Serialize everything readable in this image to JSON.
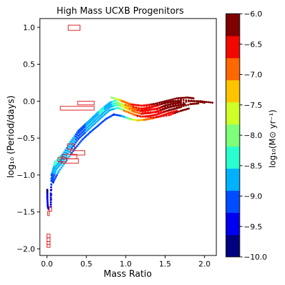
{
  "chart_data": {
    "type": "scatter",
    "title": "High Mass UCXB Progenitors",
    "xlabel": "Mass Ratio",
    "ylabel": "log₁₀ (Period/days)",
    "xlim": [
      -0.09,
      2.15
    ],
    "ylim": [
      -2.09,
      1.12
    ],
    "xticks": [
      0.0,
      0.5,
      1.0,
      1.5,
      2.0
    ],
    "xtick_labels": [
      "0.0",
      "0.5",
      "1.0",
      "1.5",
      "2.0"
    ],
    "yticks": [
      1.0,
      0.5,
      0.0,
      -0.5,
      -1.0,
      -1.5,
      -2.0
    ],
    "ytick_labels": [
      "1.0",
      "0.5",
      "0.0",
      "−0.5",
      "−1.0",
      "−1.5",
      "−2.0"
    ],
    "grid": false,
    "colorbar": {
      "label": "log₁₀(M⊙ yr⁻¹)",
      "range": [
        -10.0,
        -6.0
      ],
      "ticks": [
        -6.0,
        -6.5,
        -7.0,
        -7.5,
        -8.0,
        -8.5,
        -9.0,
        -9.5,
        -10.0
      ],
      "tick_labels": [
        "−6.0",
        "−6.5",
        "−7.0",
        "−7.5",
        "−8.0",
        "−8.5",
        "−9.0",
        "−9.5",
        "−10.0"
      ],
      "colors": [
        "#000080",
        "#0000f1",
        "#004dff",
        "#00b1ff",
        "#29ffce",
        "#7dff7a",
        "#ceff29",
        "#ffc400",
        "#ff6800",
        "#f10800",
        "#800000"
      ]
    },
    "tracks": [
      {
        "points": [
          [
            0.05,
            -1.43
          ],
          [
            0.05,
            -1.25
          ],
          [
            0.06,
            -1.0
          ],
          [
            0.1,
            -0.83
          ],
          [
            0.2,
            -0.72
          ],
          [
            0.3,
            -0.55
          ],
          [
            0.4,
            -0.4
          ],
          [
            0.5,
            -0.3
          ],
          [
            0.6,
            -0.2
          ],
          [
            0.7,
            -0.1
          ],
          [
            0.8,
            -0.02
          ],
          [
            0.9,
            0.02
          ],
          [
            1.0,
            -0.02
          ],
          [
            1.1,
            -0.08
          ],
          [
            1.2,
            -0.1
          ],
          [
            1.3,
            -0.09
          ],
          [
            1.4,
            -0.06
          ],
          [
            1.5,
            -0.02
          ],
          [
            1.6,
            0.0
          ],
          [
            1.7,
            0.0
          ]
        ],
        "logmdot": [
          -9.6,
          -9.5,
          -9.0,
          -8.4,
          -8.6,
          -8.8,
          -9.0,
          -8.9,
          -8.6,
          -8.5,
          -8.7,
          -8.0,
          -7.2,
          -7.0,
          -6.7,
          -6.5,
          -6.4,
          -6.3,
          -6.2,
          -6.1
        ]
      },
      {
        "points": [
          [
            0.05,
            -1.4
          ],
          [
            0.06,
            -1.0
          ],
          [
            0.1,
            -0.88
          ],
          [
            0.2,
            -0.75
          ],
          [
            0.3,
            -0.58
          ],
          [
            0.4,
            -0.43
          ],
          [
            0.5,
            -0.33
          ],
          [
            0.6,
            -0.23
          ],
          [
            0.7,
            -0.13
          ],
          [
            0.8,
            -0.05
          ],
          [
            0.9,
            -0.02
          ],
          [
            1.0,
            -0.06
          ],
          [
            1.1,
            -0.11
          ],
          [
            1.2,
            -0.13
          ],
          [
            1.3,
            -0.12
          ],
          [
            1.4,
            -0.1
          ],
          [
            1.5,
            -0.06
          ],
          [
            1.6,
            -0.03
          ],
          [
            1.7,
            -0.02
          ]
        ],
        "logmdot": [
          -9.6,
          -9.1,
          -8.5,
          -8.6,
          -8.8,
          -9.0,
          -8.9,
          -8.6,
          -8.5,
          -8.7,
          -8.0,
          -7.3,
          -7.0,
          -6.7,
          -6.5,
          -6.4,
          -6.3,
          -6.2,
          -6.1
        ]
      },
      {
        "points": [
          [
            0.06,
            -1.05
          ],
          [
            0.1,
            -0.9
          ],
          [
            0.2,
            -0.78
          ],
          [
            0.3,
            -0.62
          ],
          [
            0.4,
            -0.47
          ],
          [
            0.5,
            -0.37
          ],
          [
            0.6,
            -0.27
          ],
          [
            0.7,
            -0.17
          ],
          [
            0.8,
            -0.08
          ],
          [
            0.9,
            -0.05
          ],
          [
            1.0,
            -0.09
          ],
          [
            1.1,
            -0.14
          ],
          [
            1.2,
            -0.17
          ],
          [
            1.3,
            -0.16
          ],
          [
            1.4,
            -0.14
          ],
          [
            1.5,
            -0.1
          ],
          [
            1.6,
            -0.07
          ],
          [
            1.7,
            -0.05
          ],
          [
            1.75,
            -0.04
          ]
        ],
        "logmdot": [
          -9.2,
          -8.6,
          -8.6,
          -8.8,
          -9.0,
          -8.9,
          -8.6,
          -8.6,
          -8.8,
          -8.1,
          -7.4,
          -7.0,
          -6.7,
          -6.5,
          -6.4,
          -6.3,
          -6.2,
          -6.1,
          -6.0
        ]
      },
      {
        "points": [
          [
            0.07,
            -1.08
          ],
          [
            0.12,
            -0.92
          ],
          [
            0.2,
            -0.82
          ],
          [
            0.3,
            -0.66
          ],
          [
            0.4,
            -0.51
          ],
          [
            0.5,
            -0.41
          ],
          [
            0.6,
            -0.31
          ],
          [
            0.7,
            -0.21
          ],
          [
            0.8,
            -0.12
          ],
          [
            0.9,
            -0.09
          ],
          [
            1.0,
            -0.13
          ],
          [
            1.1,
            -0.18
          ],
          [
            1.2,
            -0.21
          ],
          [
            1.3,
            -0.2
          ],
          [
            1.4,
            -0.18
          ],
          [
            1.5,
            -0.14
          ],
          [
            1.6,
            -0.11
          ],
          [
            1.7,
            -0.08
          ]
        ],
        "logmdot": [
          -9.2,
          -8.7,
          -8.7,
          -8.9,
          -9.0,
          -8.9,
          -8.7,
          -8.7,
          -8.9,
          -8.3,
          -7.6,
          -7.1,
          -6.8,
          -6.6,
          -6.5,
          -6.3,
          -6.2,
          -6.1
        ]
      },
      {
        "points": [
          [
            0.08,
            -1.1
          ],
          [
            0.15,
            -0.95
          ],
          [
            0.25,
            -0.8
          ],
          [
            0.35,
            -0.65
          ],
          [
            0.45,
            -0.52
          ],
          [
            0.55,
            -0.42
          ],
          [
            0.65,
            -0.33
          ],
          [
            0.75,
            -0.24
          ],
          [
            0.85,
            -0.18
          ],
          [
            0.95,
            -0.2
          ],
          [
            1.05,
            -0.24
          ],
          [
            1.15,
            -0.26
          ],
          [
            1.25,
            -0.25
          ],
          [
            1.35,
            -0.23
          ],
          [
            1.45,
            -0.2
          ],
          [
            1.55,
            -0.16
          ],
          [
            1.65,
            -0.13
          ]
        ],
        "logmdot": [
          -9.3,
          -8.8,
          -8.8,
          -9.0,
          -9.2,
          -9.1,
          -9.0,
          -9.0,
          -9.3,
          -8.9,
          -8.0,
          -7.4,
          -7.0,
          -6.8,
          -6.6,
          -6.5,
          -6.4
        ]
      },
      {
        "points": [
          [
            0.82,
            0.05
          ],
          [
            0.95,
            0.01
          ],
          [
            1.05,
            -0.04
          ],
          [
            1.2,
            -0.06
          ],
          [
            1.35,
            -0.04
          ],
          [
            1.5,
            0.0
          ],
          [
            1.65,
            0.04
          ],
          [
            1.78,
            0.05
          ],
          [
            1.86,
            0.04
          ]
        ],
        "logmdot": [
          -8.0,
          -7.2,
          -6.8,
          -6.5,
          -6.3,
          -6.2,
          -6.1,
          -6.05,
          -6.0
        ]
      },
      {
        "points": [
          [
            0.95,
            0.0
          ],
          [
            1.1,
            -0.05
          ],
          [
            1.3,
            -0.07
          ],
          [
            1.5,
            -0.03
          ],
          [
            1.7,
            0.02
          ],
          [
            1.9,
            0.0
          ],
          [
            2.0,
            -0.02
          ]
        ],
        "logmdot": [
          -7.0,
          -6.6,
          -6.4,
          -6.3,
          -6.2,
          -6.1,
          -6.0
        ]
      },
      {
        "points": [
          [
            1.0,
            -0.05
          ],
          [
            1.2,
            -0.11
          ],
          [
            1.4,
            -0.11
          ],
          [
            1.6,
            -0.05
          ],
          [
            1.8,
            0.0
          ],
          [
            1.95,
            0.0
          ],
          [
            2.1,
            -0.02
          ]
        ],
        "logmdot": [
          -6.9,
          -6.5,
          -6.4,
          -6.3,
          -6.2,
          -6.1,
          -6.0
        ]
      },
      {
        "points": [
          [
            1.05,
            -0.1
          ],
          [
            1.25,
            -0.15
          ],
          [
            1.45,
            -0.15
          ],
          [
            1.65,
            -0.09
          ],
          [
            1.82,
            -0.04
          ],
          [
            1.92,
            -0.03
          ]
        ],
        "logmdot": [
          -6.8,
          -6.6,
          -6.4,
          -6.3,
          -6.2,
          -6.1
        ]
      },
      {
        "points": [
          [
            0.98,
            -0.13
          ],
          [
            1.15,
            -0.2
          ],
          [
            1.35,
            -0.22
          ],
          [
            1.55,
            -0.19
          ],
          [
            1.7,
            -0.13
          ],
          [
            1.8,
            -0.1
          ]
        ],
        "logmdot": [
          -7.0,
          -6.7,
          -6.5,
          -6.4,
          -6.3,
          -6.2
        ]
      },
      {
        "points": [
          [
            0.005,
            -1.2
          ],
          [
            0.005,
            -1.3
          ],
          [
            0.01,
            -1.42
          ],
          [
            0.02,
            -1.46
          ]
        ],
        "logmdot": [
          -9.7,
          -9.6,
          -9.5,
          -9.4
        ]
      }
    ],
    "boxes": [
      [
        0.27,
        0.42,
        0.96,
        1.03
      ],
      [
        0.39,
        0.6,
        -0.05,
        0.0
      ],
      [
        0.17,
        0.6,
        -0.12,
        -0.07
      ],
      [
        0.26,
        0.35,
        -0.65,
        -0.58
      ],
      [
        0.3,
        0.48,
        -0.73,
        -0.67
      ],
      [
        0.2,
        0.38,
        -0.78,
        -0.72
      ],
      [
        0.14,
        0.25,
        -0.82,
        -0.76
      ],
      [
        0.18,
        0.4,
        -0.84,
        -0.78
      ],
      [
        0.03,
        0.06,
        -1.49,
        -1.43
      ],
      [
        0.01,
        0.03,
        -1.55,
        -1.49
      ],
      [
        0.0,
        0.04,
        -1.85,
        -1.8
      ],
      [
        0.0,
        0.04,
        -1.9,
        -1.85
      ],
      [
        0.0,
        0.04,
        -1.94,
        -1.9
      ],
      [
        0.0,
        0.04,
        -1.98,
        -1.94
      ]
    ],
    "box_color": "#e02020"
  }
}
